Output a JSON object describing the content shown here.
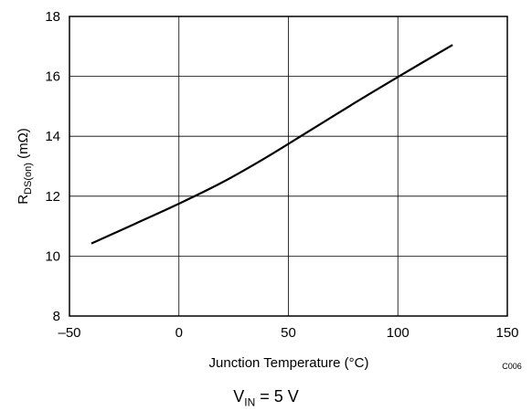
{
  "chart_data": {
    "type": "line",
    "xlabel": "Junction Temperature (°C)",
    "ylabel": "R_DS(on) (mΩ)",
    "ylabel_main": "R",
    "ylabel_sub": "DS(on)",
    "ylabel_unit": " (mΩ)",
    "xlim": [
      -50,
      150
    ],
    "ylim": [
      8,
      18
    ],
    "xticks": [
      -50,
      0,
      50,
      100,
      150
    ],
    "xtick_labels": [
      "–50",
      "0",
      "50",
      "100",
      "150"
    ],
    "yticks": [
      8,
      10,
      12,
      14,
      16,
      18
    ],
    "ytick_labels": [
      "8",
      "10",
      "12",
      "14",
      "16",
      "18"
    ],
    "grid": true,
    "series": [
      {
        "x": [
          -40,
          -20,
          0,
          20,
          40,
          60,
          80,
          100,
          125
        ],
        "y": [
          10.42,
          11.08,
          11.75,
          12.47,
          13.3,
          14.2,
          15.1,
          15.98,
          17.05
        ]
      }
    ],
    "figure_code": "C006",
    "condition": {
      "main": "V",
      "sub": "IN",
      "rest": " = 5 V"
    }
  }
}
